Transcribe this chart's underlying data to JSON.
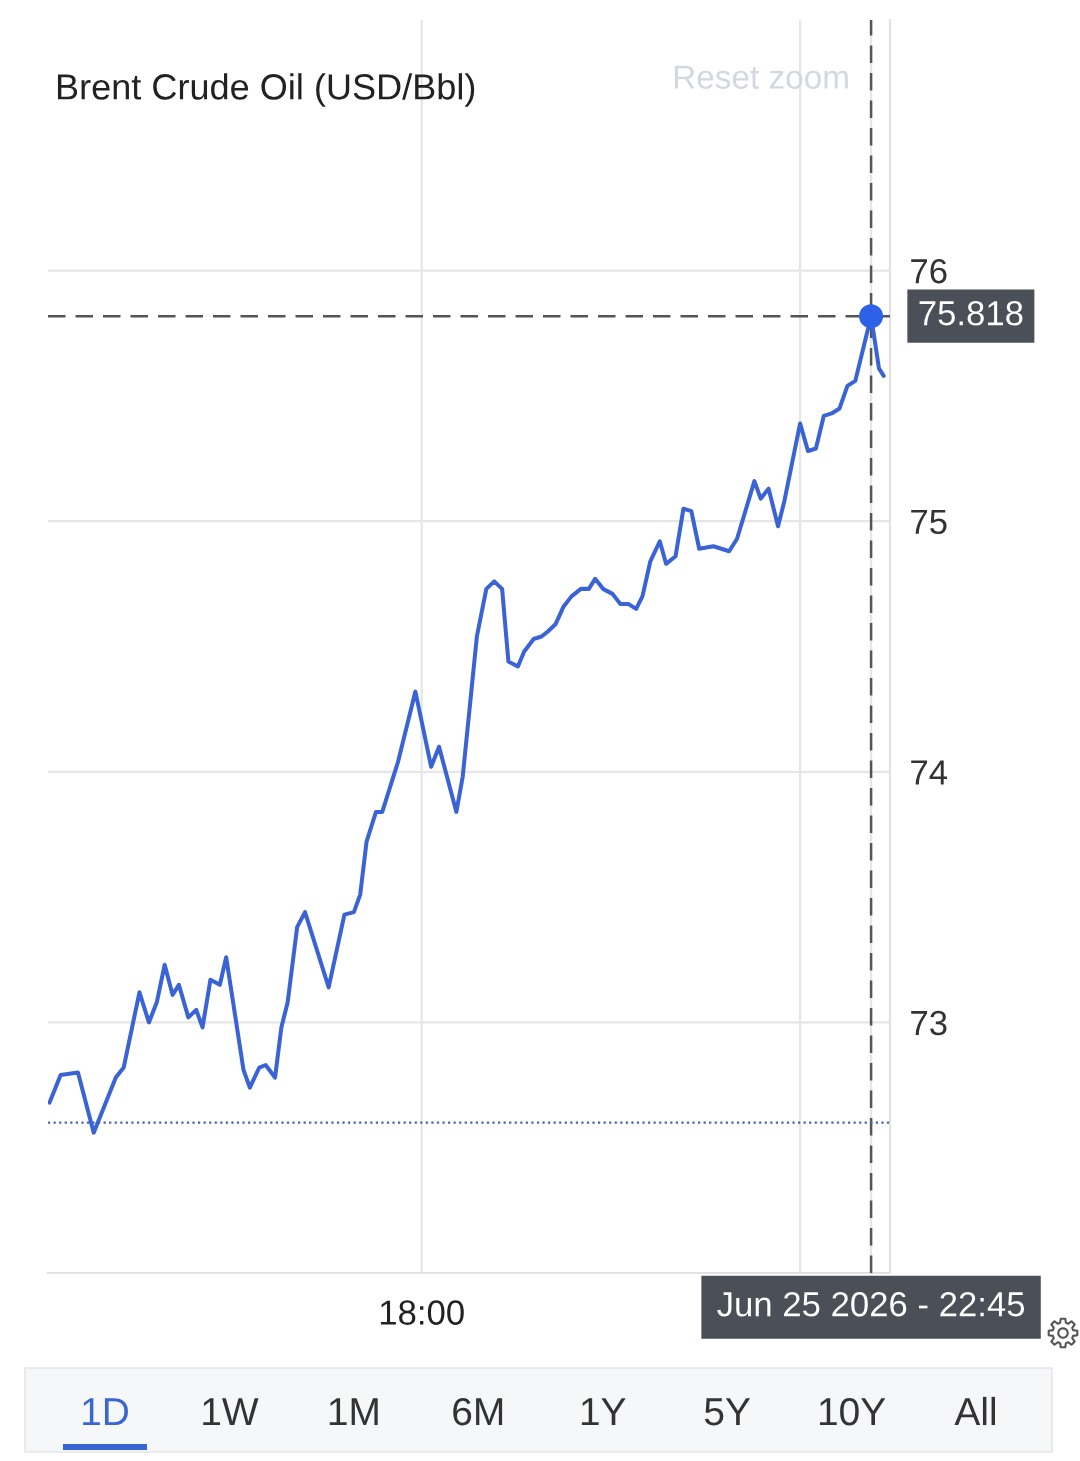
{
  "chart_data": {
    "type": "line",
    "title": "Brent Crude Oil (USD/Bbl)",
    "x": [
      "2026-06-25T14:04",
      "2026-06-25T14:11",
      "2026-06-25T14:22",
      "2026-06-25T14:32",
      "2026-06-25T14:46",
      "2026-06-25T14:51",
      "2026-06-25T15:01",
      "2026-06-25T15:07",
      "2026-06-25T15:12",
      "2026-06-25T15:17",
      "2026-06-25T15:22",
      "2026-06-25T15:26",
      "2026-06-25T15:32",
      "2026-06-25T15:37",
      "2026-06-25T15:41",
      "2026-06-25T15:46",
      "2026-06-25T15:52",
      "2026-06-25T15:56",
      "2026-06-25T16:07",
      "2026-06-25T16:11",
      "2026-06-25T16:17",
      "2026-06-25T16:21",
      "2026-06-25T16:27",
      "2026-06-25T16:31",
      "2026-06-25T16:35",
      "2026-06-25T16:41",
      "2026-06-25T16:46",
      "2026-06-25T17:01",
      "2026-06-25T17:11",
      "2026-06-25T17:17",
      "2026-06-25T17:21",
      "2026-06-25T17:25",
      "2026-06-25T17:31",
      "2026-06-25T17:35",
      "2026-06-25T17:45",
      "2026-06-25T17:56",
      "2026-06-25T18:06",
      "2026-06-25T18:11",
      "2026-06-25T18:22",
      "2026-06-25T18:26",
      "2026-06-25T18:35",
      "2026-06-25T18:41",
      "2026-06-25T18:46",
      "2026-06-25T18:51",
      "2026-06-25T18:55",
      "2026-06-25T19:01",
      "2026-06-25T19:05",
      "2026-06-25T19:11",
      "2026-06-25T19:16",
      "2026-06-25T19:20",
      "2026-06-25T19:25",
      "2026-06-25T19:30",
      "2026-06-25T19:35",
      "2026-06-25T19:41",
      "2026-06-25T19:46",
      "2026-06-25T19:50",
      "2026-06-25T19:55",
      "2026-06-25T20:01",
      "2026-06-25T20:06",
      "2026-06-25T20:11",
      "2026-06-25T20:16",
      "2026-06-25T20:20",
      "2026-06-25T20:25",
      "2026-06-25T20:31",
      "2026-06-25T20:35",
      "2026-06-25T20:41",
      "2026-06-25T20:46",
      "2026-06-25T20:51",
      "2026-06-25T20:56",
      "2026-06-25T21:05",
      "2026-06-25T21:15",
      "2026-06-25T21:20",
      "2026-06-25T21:31",
      "2026-06-25T21:35",
      "2026-06-25T21:40",
      "2026-06-25T21:46",
      "2026-06-25T21:50",
      "2026-06-25T22:00",
      "2026-06-25T22:05",
      "2026-06-25T22:10",
      "2026-06-25T22:15",
      "2026-06-25T22:20",
      "2026-06-25T22:25",
      "2026-06-25T22:30",
      "2026-06-25T22:35",
      "2026-06-25T22:45",
      "2026-06-25T22:50",
      "2026-06-25T22:53"
    ],
    "series": [
      {
        "axis": "y2",
        "color": "#3a64d6",
        "values": [
          72.68,
          72.79,
          72.8,
          72.56,
          72.78,
          72.82,
          73.12,
          73.0,
          73.08,
          73.23,
          73.11,
          73.15,
          73.02,
          73.05,
          72.98,
          73.17,
          73.15,
          73.26,
          72.81,
          72.74,
          72.82,
          72.83,
          72.78,
          72.98,
          73.08,
          73.38,
          73.44,
          73.14,
          73.43,
          73.44,
          73.51,
          73.72,
          73.84,
          73.84,
          74.04,
          74.32,
          74.02,
          74.1,
          73.84,
          73.98,
          74.54,
          74.73,
          74.76,
          74.73,
          74.44,
          74.42,
          74.48,
          74.53,
          74.54,
          74.56,
          74.59,
          74.66,
          74.7,
          74.73,
          74.73,
          74.77,
          74.73,
          74.71,
          74.67,
          74.67,
          74.65,
          74.7,
          74.84,
          74.92,
          74.83,
          74.86,
          75.05,
          75.04,
          74.89,
          74.9,
          74.88,
          74.93,
          75.16,
          75.09,
          75.13,
          74.98,
          75.08,
          75.39,
          75.28,
          75.29,
          75.42,
          75.43,
          75.45,
          75.54,
          75.56,
          75.818,
          75.61,
          75.58
        ]
      },
      {
        "type": "scatter",
        "axis": "y2",
        "x": [
          "2026-06-25T22:45"
        ],
        "values": [
          75.818
        ],
        "color": "#2d62e8"
      }
    ],
    "xlim": [
      "2026-06-25T14:03",
      "2026-06-25T22:57"
    ],
    "xticks": [
      {
        "value": "2026-06-25T18:00",
        "label": "18:00"
      },
      {
        "value": "2026-06-25T22:00",
        "label": null
      },
      {
        "value": "2026-06-25T22:45",
        "label": "Jun 25 2026 - 22:45"
      }
    ],
    "y2lim": [
      72,
      77
    ],
    "y2ticks": [
      73,
      74,
      75,
      76
    ],
    "ref_lines": [
      {
        "axis": "y2",
        "value": 75.818,
        "label": "75.818",
        "color": "#555555",
        "line_style": "dashed"
      },
      {
        "axis": "x",
        "value": "2026-06-25T22:45",
        "color": "#555555",
        "line_style": "dashed"
      },
      {
        "axis": "y2",
        "value": 72.6,
        "color": "#4466aa",
        "line_style": "dotted"
      }
    ],
    "annotations": [
      "Reset zoom",
      "1D",
      "1W",
      "1M",
      "6M",
      "1Y",
      "5Y",
      "10Y",
      "All"
    ],
    "grid": true,
    "line_style": "solid"
  }
}
